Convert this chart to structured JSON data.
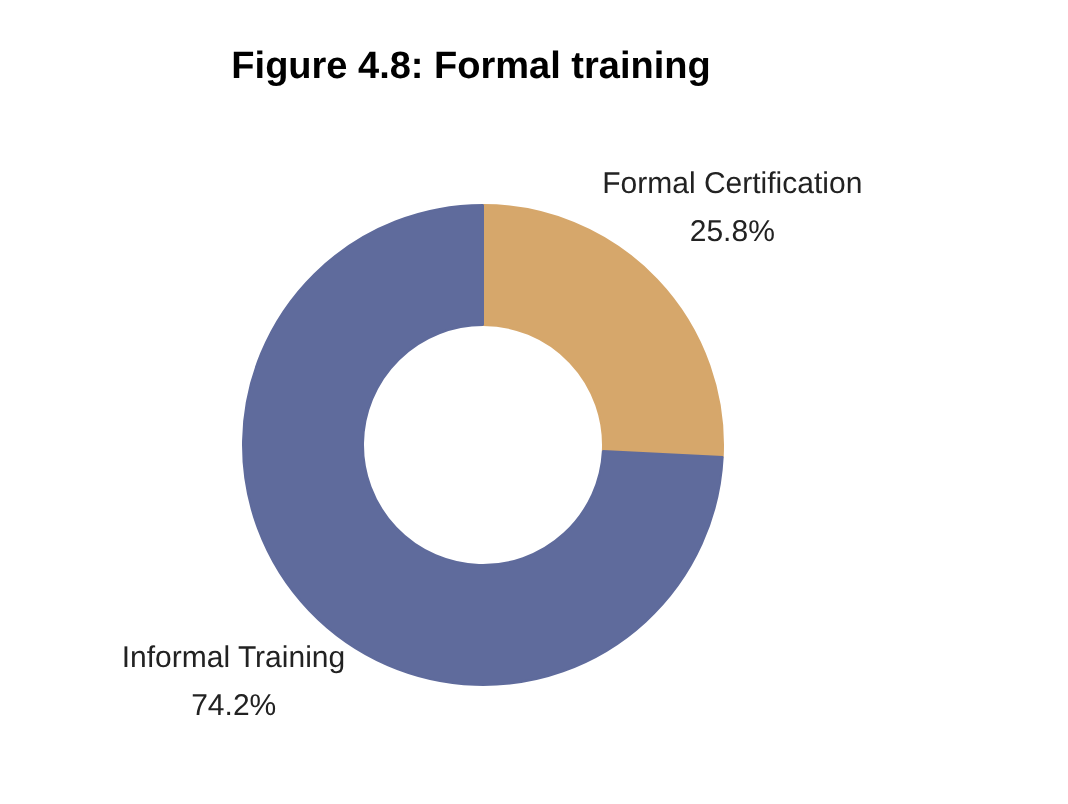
{
  "chart_data": {
    "type": "donut",
    "title": "Figure 4.8: Formal training",
    "categories": [
      "Formal Certification",
      "Informal Training"
    ],
    "values": [
      25.8,
      74.2
    ],
    "colors": [
      "#d6a76b",
      "#5f6b9c"
    ],
    "value_labels": [
      "25.8%",
      "74.2%"
    ]
  }
}
